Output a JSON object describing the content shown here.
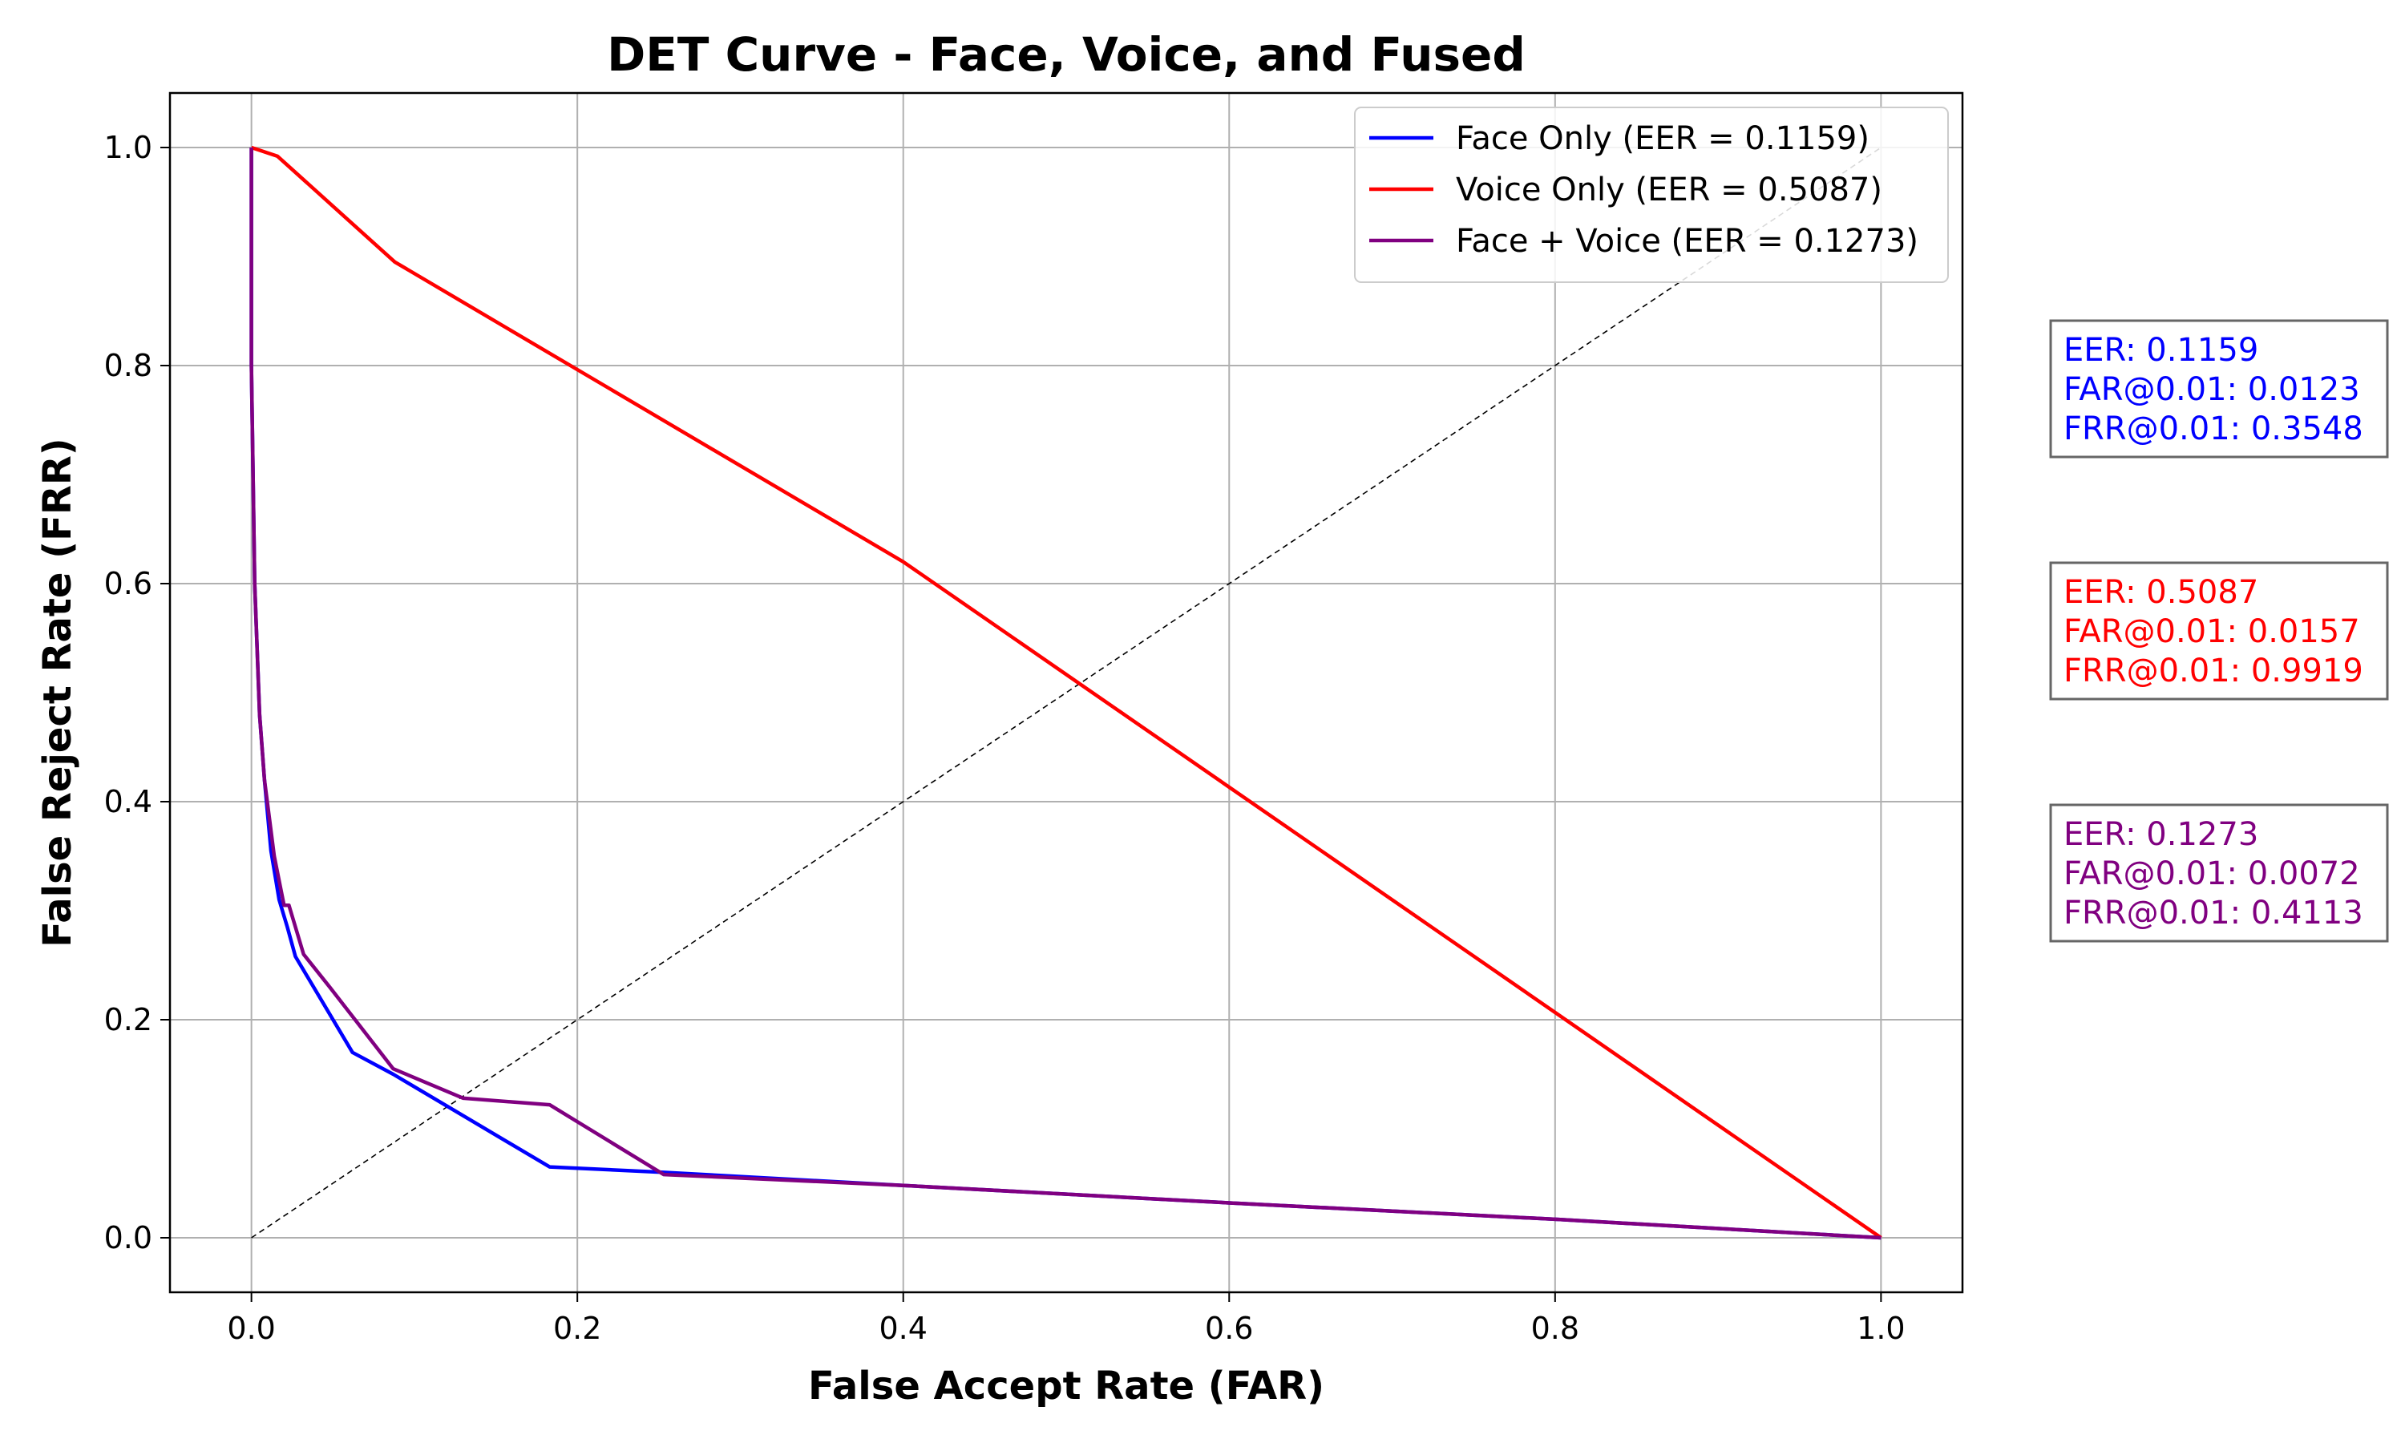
{
  "chart_data": {
    "type": "line",
    "title": "DET Curve - Face, Voice, and Fused",
    "xlabel": "False Accept Rate (FAR)",
    "ylabel": "False Reject Rate (FRR)",
    "xlim": [
      -0.05,
      1.05
    ],
    "ylim": [
      -0.05,
      1.05
    ],
    "xticks": [
      "0.0",
      "0.2",
      "0.4",
      "0.6",
      "0.8",
      "1.0"
    ],
    "yticks": [
      "0.0",
      "0.2",
      "0.4",
      "0.6",
      "0.8",
      "1.0"
    ],
    "grid": true,
    "legend_position": "top-right",
    "series": [
      {
        "name": "Face Only (EER = 0.1159)",
        "color": "#0000ff",
        "x": [
          0.0,
          0.0,
          0.002,
          0.005,
          0.008,
          0.012,
          0.017,
          0.022,
          0.027,
          0.062,
          0.087,
          0.183,
          0.253,
          0.4,
          0.6,
          0.8,
          1.0
        ],
        "y": [
          1.0,
          0.8,
          0.6,
          0.48,
          0.42,
          0.355,
          0.31,
          0.285,
          0.258,
          0.17,
          0.15,
          0.065,
          0.06,
          0.048,
          0.032,
          0.017,
          0.0
        ]
      },
      {
        "name": "Voice Only (EER = 0.5087)",
        "color": "#ff0000",
        "x": [
          0.0,
          0.016,
          0.088,
          0.4,
          1.0
        ],
        "y": [
          1.0,
          0.992,
          0.895,
          0.62,
          0.0
        ]
      },
      {
        "name": "Face + Voice (EER = 0.1273)",
        "color": "#800080",
        "x": [
          0.0,
          0.0,
          0.002,
          0.005,
          0.008,
          0.014,
          0.02,
          0.023,
          0.032,
          0.048,
          0.087,
          0.13,
          0.183,
          0.253,
          0.4,
          0.6,
          0.8,
          1.0
        ],
        "y": [
          1.0,
          0.8,
          0.6,
          0.48,
          0.42,
          0.35,
          0.305,
          0.305,
          0.26,
          0.23,
          0.155,
          0.128,
          0.122,
          0.058,
          0.048,
          0.032,
          0.017,
          0.0
        ]
      },
      {
        "name": "",
        "color": "#000000",
        "dashed": true,
        "x": [
          0.0,
          1.0
        ],
        "y": [
          0.0,
          1.0
        ]
      }
    ],
    "annotations": [
      {
        "color": "#0000ff",
        "lines": [
          "EER: 0.1159",
          "FAR@0.01: 0.0123",
          "FRR@0.01: 0.3548"
        ]
      },
      {
        "color": "#ff0000",
        "lines": [
          "EER: 0.5087",
          "FAR@0.01: 0.0157",
          "FRR@0.01: 0.9919"
        ]
      },
      {
        "color": "#800080",
        "lines": [
          "EER: 0.1273",
          "FAR@0.01: 0.0072",
          "FRR@0.01: 0.4113"
        ]
      }
    ]
  }
}
